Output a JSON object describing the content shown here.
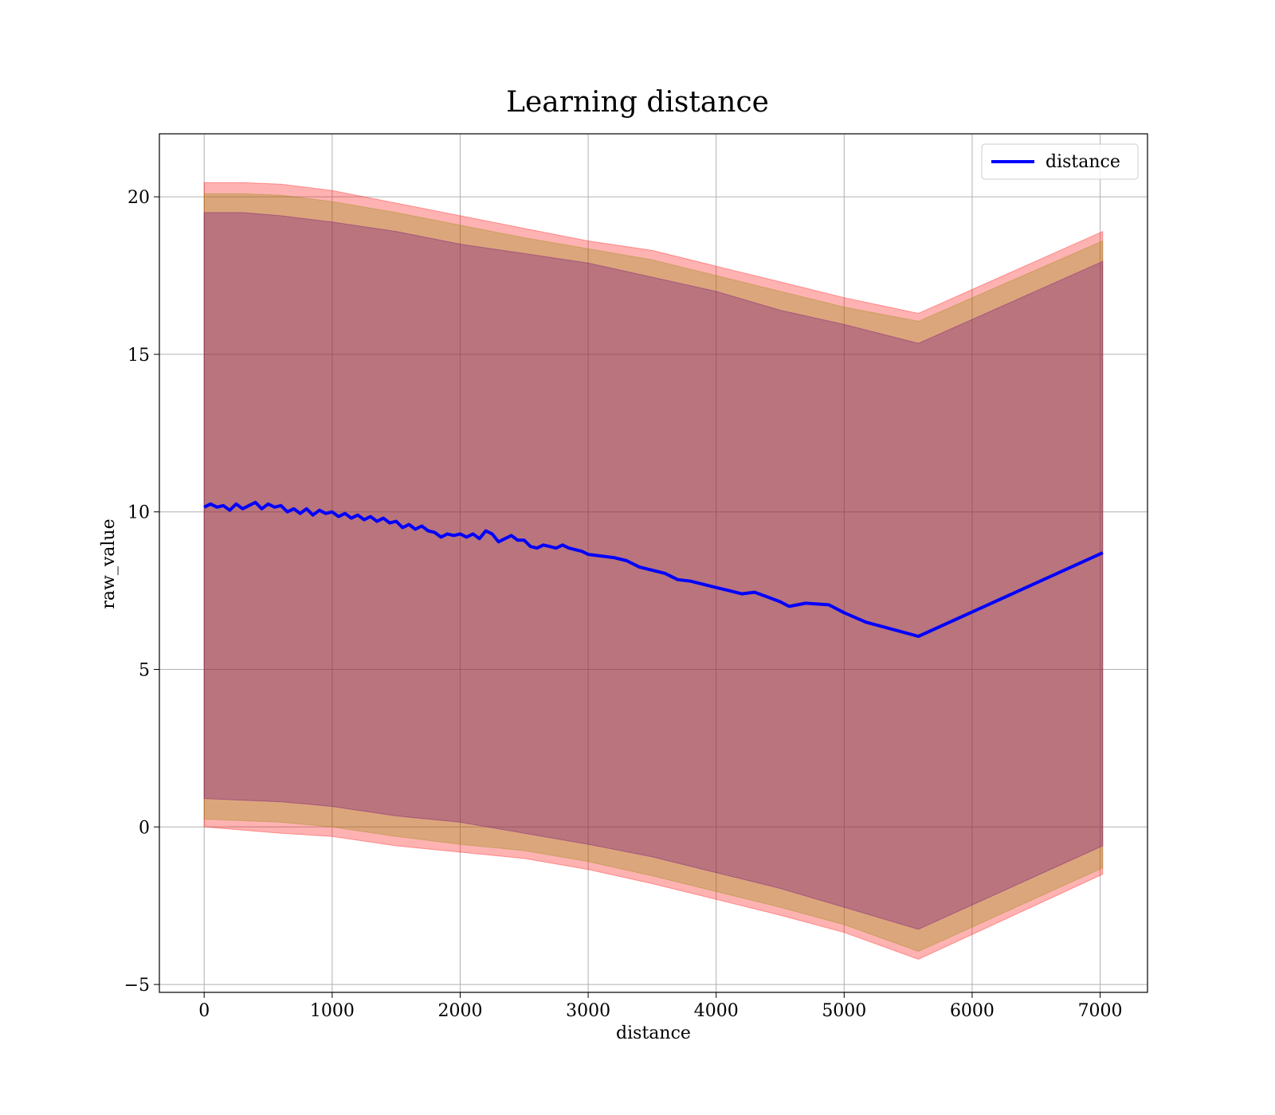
{
  "chart_data": {
    "type": "line",
    "title": "Learning distance",
    "xlabel": "distance",
    "ylabel": "raw_value",
    "xlim": [
      -350,
      7370
    ],
    "ylim": [
      -5.25,
      22.0
    ],
    "x_ticks": [
      0,
      1000,
      2000,
      3000,
      4000,
      5000,
      6000,
      7000
    ],
    "y_ticks": [
      -5,
      0,
      5,
      10,
      15,
      20
    ],
    "x_tick_labels": [
      "0",
      "1000",
      "2000",
      "3000",
      "4000",
      "5000",
      "6000",
      "7000"
    ],
    "y_tick_labels": [
      "−5",
      "0",
      "5",
      "10",
      "15",
      "20"
    ],
    "grid": true,
    "legend": {
      "position": "top-right",
      "entries": [
        "distance"
      ]
    },
    "colors": {
      "line": "#0000ff",
      "band_outer": "#ff0000",
      "band_mid": "#8b8b00",
      "band_inner": "#6b0080",
      "grid": "#b0b0b0"
    },
    "series": [
      {
        "name": "distance",
        "x": [
          0,
          50,
          100,
          150,
          200,
          250,
          300,
          350,
          400,
          450,
          500,
          550,
          600,
          650,
          700,
          750,
          800,
          850,
          900,
          950,
          1000,
          1050,
          1100,
          1150,
          1200,
          1250,
          1300,
          1350,
          1400,
          1450,
          1500,
          1550,
          1600,
          1650,
          1700,
          1750,
          1800,
          1850,
          1900,
          1950,
          2000,
          2050,
          2100,
          2150,
          2200,
          2250,
          2300,
          2350,
          2400,
          2450,
          2500,
          2550,
          2600,
          2650,
          2700,
          2750,
          2800,
          2850,
          2900,
          2950,
          3000,
          3100,
          3200,
          3300,
          3400,
          3500,
          3600,
          3700,
          3800,
          3900,
          4000,
          4100,
          4200,
          4300,
          4400,
          4500,
          4570,
          4700,
          4880,
          5000,
          5170,
          5580,
          7020
        ],
        "y": [
          10.15,
          10.25,
          10.15,
          10.2,
          10.05,
          10.25,
          10.1,
          10.2,
          10.3,
          10.1,
          10.25,
          10.15,
          10.2,
          10.0,
          10.1,
          9.95,
          10.1,
          9.9,
          10.05,
          9.95,
          10.0,
          9.85,
          9.95,
          9.8,
          9.9,
          9.75,
          9.85,
          9.7,
          9.8,
          9.65,
          9.7,
          9.5,
          9.6,
          9.45,
          9.55,
          9.4,
          9.35,
          9.2,
          9.3,
          9.25,
          9.3,
          9.2,
          9.3,
          9.15,
          9.4,
          9.3,
          9.05,
          9.15,
          9.25,
          9.1,
          9.1,
          8.9,
          8.85,
          8.95,
          8.9,
          8.85,
          8.95,
          8.85,
          8.8,
          8.75,
          8.65,
          8.6,
          8.55,
          8.45,
          8.25,
          8.15,
          8.05,
          7.85,
          7.8,
          7.7,
          7.6,
          7.5,
          7.4,
          7.45,
          7.3,
          7.15,
          7.0,
          7.1,
          7.05,
          6.8,
          6.5,
          6.05,
          8.7
        ]
      }
    ],
    "bands": [
      {
        "x": [
          0,
          300,
          600,
          1000,
          1500,
          2000,
          2500,
          3000,
          3500,
          4000,
          4500,
          5000,
          5580,
          7020
        ],
        "upper": [
          20.45,
          20.45,
          20.4,
          20.2,
          19.8,
          19.4,
          19.0,
          18.6,
          18.3,
          17.8,
          17.3,
          16.8,
          16.3,
          18.9
        ],
        "lower": [
          0.0,
          -0.1,
          -0.2,
          -0.3,
          -0.6,
          -0.8,
          -1.0,
          -1.35,
          -1.8,
          -2.3,
          -2.8,
          -3.35,
          -4.2,
          -1.5
        ]
      },
      {
        "x": [
          0,
          300,
          600,
          1000,
          1500,
          2000,
          2500,
          3000,
          3500,
          4000,
          4500,
          5000,
          5580,
          7020
        ],
        "upper": [
          20.1,
          20.1,
          20.05,
          19.85,
          19.5,
          19.1,
          18.7,
          18.35,
          18.0,
          17.5,
          17.0,
          16.5,
          16.05,
          18.6
        ],
        "lower": [
          0.25,
          0.2,
          0.15,
          0.0,
          -0.3,
          -0.55,
          -0.75,
          -1.1,
          -1.55,
          -2.05,
          -2.55,
          -3.1,
          -3.95,
          -1.3
        ]
      },
      {
        "x": [
          0,
          300,
          600,
          1000,
          1500,
          2000,
          2500,
          3000,
          3500,
          4000,
          4500,
          5000,
          5580,
          7020
        ],
        "upper": [
          19.5,
          19.5,
          19.4,
          19.2,
          18.9,
          18.5,
          18.2,
          17.9,
          17.45,
          17.0,
          16.4,
          15.95,
          15.35,
          17.95
        ],
        "lower": [
          0.9,
          0.85,
          0.8,
          0.65,
          0.35,
          0.15,
          -0.2,
          -0.55,
          -0.95,
          -1.45,
          -1.95,
          -2.55,
          -3.25,
          -0.6
        ]
      }
    ]
  }
}
